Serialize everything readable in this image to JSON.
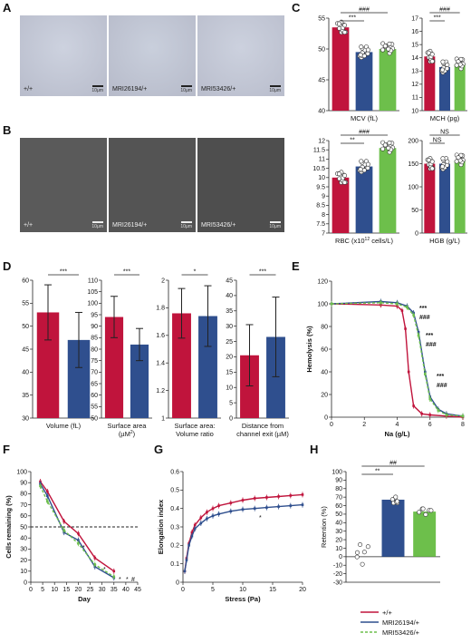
{
  "panels": {
    "A": {
      "label": "A",
      "images": [
        {
          "label": "+/+",
          "scale": "10μm"
        },
        {
          "label": "MRI26194/+",
          "scale": "10μm"
        },
        {
          "label": "MRI53426/+",
          "scale": "10μm"
        }
      ]
    },
    "B": {
      "label": "B",
      "images": [
        {
          "label": "+/+",
          "scale": "10μm"
        },
        {
          "label": "MRI26194/+",
          "scale": "10μm"
        },
        {
          "label": "MRI53426/+",
          "scale": "10μm"
        }
      ]
    },
    "C": {
      "label": "C"
    },
    "D": {
      "label": "D"
    },
    "E": {
      "label": "E"
    },
    "F": {
      "label": "F"
    },
    "G": {
      "label": "G"
    },
    "H": {
      "label": "H"
    }
  },
  "colors": {
    "wt": "#c0143c",
    "mri26194": "#2f4f8e",
    "mri53426": "#6dbf4b"
  },
  "legend": [
    {
      "label": "+/+",
      "color": "#c0143c",
      "style": "solid"
    },
    {
      "label": "MRI26194/+",
      "color": "#2f4f8e",
      "style": "solid"
    },
    {
      "label": "MRI53426/+",
      "color": "#6dbf4b",
      "style": "dashed"
    }
  ],
  "chart_data": [
    {
      "id": "C1",
      "type": "bar",
      "xlabel": "MCV (fL)",
      "ylim": [
        40,
        55
      ],
      "yticks": [
        40,
        45,
        50,
        55
      ],
      "values": [
        53.5,
        49.5,
        50.0
      ],
      "sig": [
        {
          "text": "###",
          "from": 0,
          "to": 2
        },
        {
          "text": "***",
          "from": 0,
          "to": 1
        }
      ]
    },
    {
      "id": "C2",
      "type": "bar",
      "xlabel": "MCH (pg)",
      "ylim": [
        10,
        17
      ],
      "yticks": [
        10,
        11,
        12,
        13,
        14,
        15,
        16,
        17
      ],
      "values": [
        14.1,
        13.3,
        13.5
      ],
      "sig": [
        {
          "text": "###",
          "from": 0,
          "to": 2
        },
        {
          "text": "***",
          "from": 0,
          "to": 1
        }
      ]
    },
    {
      "id": "C3",
      "type": "bar",
      "xlabel": "RBC (x10",
      "xlabel_sup": "12",
      "xlabel_end": " cells/L)",
      "ylim": [
        7,
        12
      ],
      "yticks": [
        7,
        7.5,
        8,
        8.5,
        9,
        9.5,
        10,
        10.5,
        11,
        11.5,
        12
      ],
      "values": [
        10.0,
        10.6,
        11.6
      ],
      "sig": [
        {
          "text": "###",
          "from": 0,
          "to": 2
        },
        {
          "text": "**",
          "from": 0,
          "to": 1
        }
      ]
    },
    {
      "id": "C4",
      "type": "bar",
      "xlabel": "HGB (g/L)",
      "ylim": [
        0,
        200
      ],
      "yticks": [
        0,
        50,
        100,
        150,
        200
      ],
      "values": [
        150,
        150,
        157
      ],
      "sig": [
        {
          "text": "NS",
          "from": 0,
          "to": 2
        },
        {
          "text": "NS",
          "from": 0,
          "to": 1
        }
      ]
    },
    {
      "id": "D1",
      "type": "bar",
      "xlabel": "Volume (fL)",
      "ylim": [
        30,
        60
      ],
      "yticks": [
        30,
        35,
        40,
        45,
        50,
        55,
        60
      ],
      "values": [
        53,
        47
      ],
      "errors": [
        6,
        6
      ],
      "sig": [
        {
          "text": "***",
          "from": 0,
          "to": 1
        }
      ]
    },
    {
      "id": "D2",
      "type": "bar",
      "xlabel": "Surface area",
      "xlabel2": "(µM",
      "xlabel2_sup": "2",
      "xlabel2_end": ")",
      "ylim": [
        50,
        110
      ],
      "yticks": [
        50,
        55,
        60,
        65,
        70,
        75,
        80,
        85,
        90,
        95,
        100,
        105,
        110
      ],
      "values": [
        94,
        82
      ],
      "errors": [
        9,
        7
      ],
      "sig": [
        {
          "text": "***",
          "from": 0,
          "to": 1
        }
      ]
    },
    {
      "id": "D3",
      "type": "bar",
      "xlabel": "Surface area:",
      "xlabel2": "Volume ratio",
      "ylim": [
        1,
        2
      ],
      "yticks": [
        1,
        1.2,
        1.4,
        1.6,
        1.8,
        2
      ],
      "values": [
        1.76,
        1.74
      ],
      "errors": [
        0.18,
        0.22
      ],
      "sig": [
        {
          "text": "*",
          "from": 0,
          "to": 1
        }
      ]
    },
    {
      "id": "D4",
      "type": "bar",
      "xlabel": "Distance from",
      "xlabel2": "channel exit (µM)",
      "ylim": [
        0,
        45
      ],
      "yticks": [
        0,
        5,
        10,
        15,
        20,
        25,
        30,
        35,
        40,
        45
      ],
      "values": [
        20.5,
        26.5
      ],
      "errors": [
        10,
        13
      ],
      "sig": [
        {
          "text": "***",
          "from": 0,
          "to": 1
        }
      ]
    },
    {
      "id": "E",
      "type": "line",
      "xlabel": "Na (g/L)",
      "ylabel": "Hemolysis (%)",
      "xlim": [
        0,
        8
      ],
      "ylim": [
        0,
        120
      ],
      "xticks": [
        0,
        2,
        4,
        6,
        8
      ],
      "yticks": [
        0,
        20,
        40,
        60,
        80,
        100,
        120
      ],
      "series": [
        {
          "x": [
            0,
            3.0,
            4.0,
            4.3,
            4.5,
            4.7,
            5.0,
            5.5,
            6.0,
            7.0,
            8.0
          ],
          "y": [
            100,
            99,
            98,
            94,
            78,
            40,
            10,
            3,
            2,
            1,
            0
          ]
        },
        {
          "x": [
            0,
            3.0,
            4.0,
            4.6,
            5.0,
            5.3,
            5.7,
            6.0,
            6.5,
            7.0,
            8.0
          ],
          "y": [
            100,
            102,
            101,
            98,
            92,
            75,
            40,
            18,
            7,
            3,
            1
          ]
        },
        {
          "x": [
            0,
            3.0,
            4.0,
            4.6,
            5.0,
            5.3,
            5.7,
            6.0,
            6.5,
            7.0,
            8.0
          ],
          "y": [
            100,
            101,
            100,
            97,
            90,
            72,
            38,
            16,
            6,
            2,
            1
          ]
        }
      ],
      "annotations": [
        "***",
        "###",
        "***",
        "###",
        "***",
        "###"
      ]
    },
    {
      "id": "F",
      "type": "line",
      "xlabel": "Day",
      "ylabel": "Cells remaining (%)",
      "xlim": [
        0,
        45
      ],
      "ylim": [
        0,
        100
      ],
      "xticks": [
        0,
        5,
        10,
        15,
        20,
        25,
        30,
        35,
        40,
        45
      ],
      "yticks": [
        0,
        10,
        20,
        30,
        40,
        50,
        60,
        70,
        80,
        90,
        100
      ],
      "series": [
        {
          "x": [
            4,
            7,
            14,
            20,
            27,
            35
          ],
          "y": [
            91,
            82,
            55,
            44,
            22,
            10
          ]
        },
        {
          "x": [
            4,
            7,
            14,
            20,
            27,
            35
          ],
          "y": [
            89,
            78,
            45,
            38,
            14,
            4
          ]
        },
        {
          "x": [
            4,
            7,
            14,
            20,
            27,
            35
          ],
          "y": [
            87,
            73,
            47,
            35,
            16,
            5
          ]
        }
      ],
      "threshold": 50,
      "annotations": [
        "*",
        "*",
        "*",
        "*",
        "#"
      ]
    },
    {
      "id": "G",
      "type": "line",
      "xlabel": "Stress (Pa)",
      "ylabel": "Elongation index",
      "xlim": [
        0,
        20
      ],
      "ylim": [
        0,
        0.6
      ],
      "xticks": [
        0,
        5,
        10,
        15,
        20
      ],
      "yticks": [
        0,
        0.1,
        0.2,
        0.3,
        0.4,
        0.5,
        0.6
      ],
      "series": [
        {
          "x": [
            0.3,
            0.6,
            1,
            1.5,
            2,
            3,
            4,
            5,
            6,
            8,
            10,
            12,
            14,
            16,
            18,
            20
          ],
          "y": [
            0.06,
            0.13,
            0.21,
            0.27,
            0.31,
            0.35,
            0.38,
            0.4,
            0.415,
            0.43,
            0.445,
            0.455,
            0.46,
            0.465,
            0.47,
            0.475
          ]
        },
        {
          "x": [
            0.3,
            0.6,
            1,
            1.5,
            2,
            3,
            4,
            5,
            6,
            8,
            10,
            12,
            14,
            16,
            18,
            20
          ],
          "y": [
            0.06,
            0.12,
            0.2,
            0.25,
            0.29,
            0.32,
            0.345,
            0.36,
            0.37,
            0.385,
            0.395,
            0.4,
            0.405,
            0.41,
            0.415,
            0.42
          ]
        }
      ],
      "annotations": [
        "*"
      ]
    },
    {
      "id": "H",
      "type": "bar",
      "ylabel": "Retention (%)",
      "ylim": [
        -30,
        100
      ],
      "yticks": [
        -30,
        -20,
        -10,
        0,
        10,
        20,
        30,
        40,
        50,
        60,
        70,
        80,
        90,
        100
      ],
      "values": [
        0,
        67,
        53
      ],
      "sig": [
        {
          "text": "##",
          "from": 0,
          "to": 2
        },
        {
          "text": "**",
          "from": 0,
          "to": 1
        }
      ]
    }
  ]
}
